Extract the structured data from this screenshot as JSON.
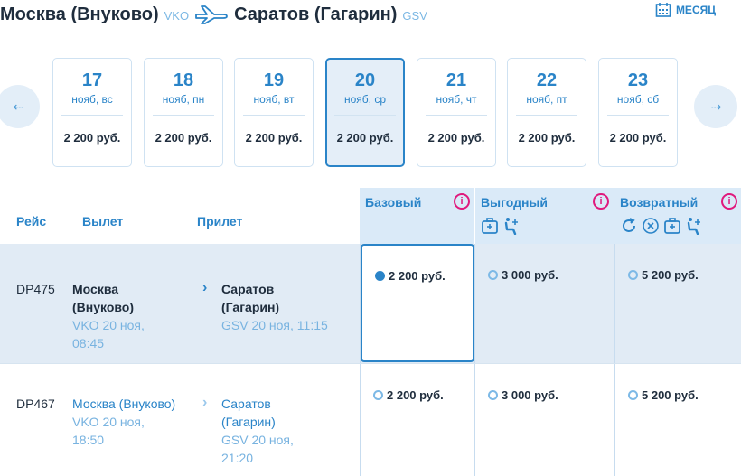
{
  "route": {
    "origin_city": "Москва (Внуково)",
    "origin_code": "VKO",
    "destination_city": "Саратов (Гагарин)",
    "destination_code": "GSV",
    "plane_icon": "plane-icon"
  },
  "month_button": {
    "label": "МЕСЯЦ",
    "icon": "calendar-icon"
  },
  "date_nav": {
    "prev_icon": "arrow-left-icon",
    "next_icon": "arrow-right-icon"
  },
  "dates": [
    {
      "day": "17",
      "sub": "нояб, вс",
      "price": "2 200 руб."
    },
    {
      "day": "18",
      "sub": "нояб, пн",
      "price": "2 200 руб."
    },
    {
      "day": "19",
      "sub": "нояб, вт",
      "price": "2 200 руб."
    },
    {
      "day": "20",
      "sub": "нояб, ср",
      "price": "2 200 руб.",
      "selected": true
    },
    {
      "day": "21",
      "sub": "нояб, чт",
      "price": "2 200 руб."
    },
    {
      "day": "22",
      "sub": "нояб, пт",
      "price": "2 200 руб."
    },
    {
      "day": "23",
      "sub": "нояб, сб",
      "price": "2 200 руб."
    }
  ],
  "table": {
    "headers": {
      "flight": "Рейс",
      "departure": "Вылет",
      "arrival": "Прилет"
    },
    "fares": [
      {
        "name": "Базовый",
        "icons": []
      },
      {
        "name": "Выгодный",
        "icons": [
          "baggage-icon",
          "seat-icon"
        ]
      },
      {
        "name": "Возвратный",
        "icons": [
          "refund-icon",
          "exchange-icon",
          "baggage-icon",
          "seat-icon"
        ]
      }
    ],
    "rows": [
      {
        "flight": "DP475",
        "dep_city_1": "Москва",
        "dep_city_2": "(Внуково)",
        "dep_time_1": "VKO 20 ноя,",
        "dep_time_2": "08:45",
        "arr_city_1": "Саратов",
        "arr_city_2": "(Гагарин)",
        "arr_time_1": "GSV 20 ноя, 11:15",
        "arr_time_2": "",
        "prices": [
          "2 200 руб.",
          "3 000 руб.",
          "5 200 руб."
        ],
        "selected_fare": 0
      },
      {
        "flight": "DP467",
        "dep_city_1": "Москва (Внуково)",
        "dep_city_2": "",
        "dep_time_1": "VKO 20 ноя,",
        "dep_time_2": "18:50",
        "arr_city_1": "Саратов",
        "arr_city_2": "(Гагарин)",
        "arr_time_1": "GSV 20 ноя,",
        "arr_time_2": "21:20",
        "prices": [
          "2 200 руб.",
          "3 000 руб.",
          "5 200 руб."
        ],
        "selected_fare": null
      }
    ]
  },
  "colors": {
    "accent": "#2a84c8",
    "info": "#e0197d",
    "highlight_bg": "#e1ebf5"
  }
}
